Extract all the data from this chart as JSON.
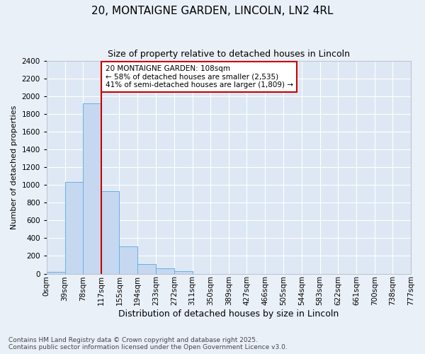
{
  "title": "20, MONTAIGNE GARDEN, LINCOLN, LN2 4RL",
  "subtitle": "Size of property relative to detached houses in Lincoln",
  "xlabel": "Distribution of detached houses by size in Lincoln",
  "ylabel": "Number of detached properties",
  "annotation_line1": "20 MONTAIGNE GARDEN: 108sqm",
  "annotation_line2": "← 58% of detached houses are smaller (2,535)",
  "annotation_line3": "41% of semi-detached houses are larger (1,809) →",
  "footer_line1": "Contains HM Land Registry data © Crown copyright and database right 2025.",
  "footer_line2": "Contains public sector information licensed under the Open Government Licence v3.0.",
  "bins": [
    0,
    39,
    78,
    117,
    155,
    194,
    233,
    272,
    311,
    350,
    389,
    427,
    466,
    505,
    544,
    583,
    622,
    661,
    700,
    738,
    777
  ],
  "bin_labels": [
    "0sqm",
    "39sqm",
    "78sqm",
    "117sqm",
    "155sqm",
    "194sqm",
    "233sqm",
    "272sqm",
    "311sqm",
    "350sqm",
    "389sqm",
    "427sqm",
    "466sqm",
    "505sqm",
    "544sqm",
    "583sqm",
    "622sqm",
    "661sqm",
    "700sqm",
    "738sqm",
    "777sqm"
  ],
  "counts": [
    20,
    1030,
    1920,
    930,
    310,
    108,
    60,
    32,
    0,
    0,
    0,
    0,
    0,
    0,
    0,
    0,
    0,
    0,
    0,
    0
  ],
  "bar_color": "#c5d8f0",
  "bar_edgecolor": "#6aaee8",
  "redline_x": 117,
  "annotation_box_facecolor": "#ffffff",
  "annotation_box_edgecolor": "#cc0000",
  "fig_facecolor": "#eaf0f8",
  "ax_facecolor": "#dde8f4",
  "grid_color": "#ffffff",
  "ylim": [
    0,
    2400
  ],
  "yticks": [
    0,
    200,
    400,
    600,
    800,
    1000,
    1200,
    1400,
    1600,
    1800,
    2000,
    2200,
    2400
  ],
  "title_fontsize": 11,
  "subtitle_fontsize": 9,
  "xlabel_fontsize": 9,
  "ylabel_fontsize": 8,
  "tick_fontsize": 7.5,
  "footer_fontsize": 6.5
}
